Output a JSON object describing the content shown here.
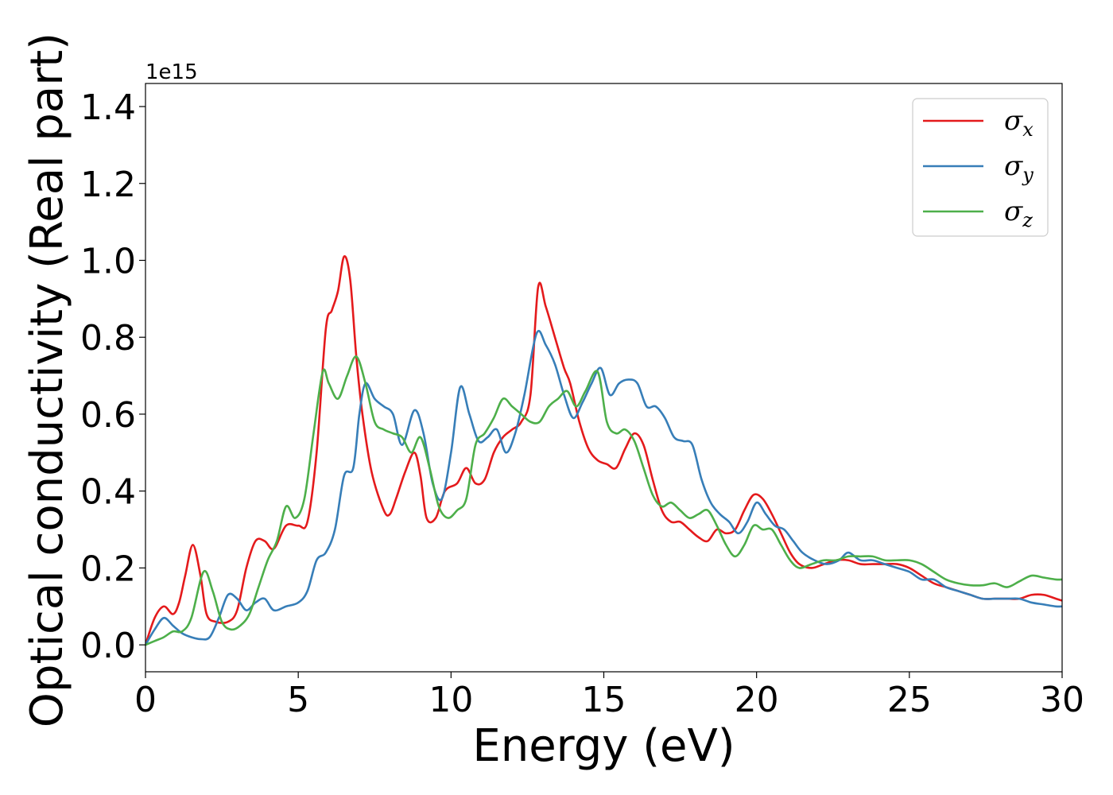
{
  "chart_data": {
    "type": "line",
    "xlabel": "Energy (eV)",
    "ylabel": "Optical conductivity (Real part)",
    "y_offset_label": "1e15",
    "xlim": [
      0,
      30
    ],
    "ylim": [
      -0.07,
      1.46
    ],
    "x_ticks": [
      0,
      5,
      10,
      15,
      20,
      25,
      30
    ],
    "x_tick_labels": [
      "0",
      "5",
      "10",
      "15",
      "20",
      "25",
      "30"
    ],
    "y_ticks": [
      0.0,
      0.2,
      0.4,
      0.6,
      0.8,
      1.0,
      1.2,
      1.4
    ],
    "y_tick_labels": [
      "0.0",
      "0.2",
      "0.4",
      "0.6",
      "0.8",
      "1.0",
      "1.2",
      "1.4"
    ],
    "grid": false,
    "legend_position": "top-right",
    "series": [
      {
        "name": "σx",
        "legend_base": "σ",
        "legend_sub": "x",
        "color": "#e41a1c",
        "x": [
          0,
          0.3,
          0.6,
          0.9,
          1.1,
          1.3,
          1.55,
          1.8,
          2.0,
          2.3,
          2.7,
          3.0,
          3.3,
          3.6,
          3.9,
          4.2,
          4.6,
          5.0,
          5.3,
          5.6,
          5.9,
          6.1,
          6.3,
          6.5,
          6.7,
          6.9,
          7.1,
          7.4,
          7.8,
          8.0,
          8.2,
          8.5,
          8.8,
          9.0,
          9.2,
          9.5,
          9.8,
          10.2,
          10.5,
          10.8,
          11.1,
          11.4,
          11.7,
          12.0,
          12.3,
          12.6,
          12.85,
          13.1,
          13.4,
          13.7,
          13.9,
          14.2,
          14.5,
          14.8,
          15.1,
          15.4,
          15.7,
          16.0,
          16.3,
          16.6,
          16.9,
          17.2,
          17.5,
          17.8,
          18.1,
          18.4,
          18.7,
          19.0,
          19.3,
          19.6,
          19.9,
          20.2,
          20.5,
          20.8,
          21.1,
          21.4,
          21.8,
          22.2,
          22.6,
          23.0,
          23.4,
          23.8,
          24.2,
          24.6,
          25.0,
          25.4,
          25.8,
          26.2,
          26.6,
          27.0,
          27.4,
          27.8,
          28.2,
          28.6,
          29.0,
          29.4,
          29.8,
          30.0
        ],
        "y": [
          0.0,
          0.07,
          0.1,
          0.08,
          0.11,
          0.18,
          0.26,
          0.18,
          0.08,
          0.06,
          0.06,
          0.09,
          0.2,
          0.27,
          0.27,
          0.25,
          0.31,
          0.31,
          0.32,
          0.5,
          0.82,
          0.87,
          0.92,
          1.01,
          0.95,
          0.75,
          0.6,
          0.45,
          0.35,
          0.34,
          0.38,
          0.45,
          0.5,
          0.44,
          0.33,
          0.33,
          0.4,
          0.42,
          0.46,
          0.42,
          0.43,
          0.5,
          0.54,
          0.56,
          0.58,
          0.65,
          0.93,
          0.88,
          0.8,
          0.72,
          0.68,
          0.58,
          0.51,
          0.48,
          0.47,
          0.46,
          0.51,
          0.55,
          0.52,
          0.43,
          0.35,
          0.32,
          0.32,
          0.3,
          0.28,
          0.27,
          0.3,
          0.29,
          0.3,
          0.35,
          0.39,
          0.38,
          0.34,
          0.29,
          0.24,
          0.21,
          0.2,
          0.21,
          0.22,
          0.22,
          0.21,
          0.21,
          0.21,
          0.21,
          0.2,
          0.18,
          0.16,
          0.15,
          0.14,
          0.13,
          0.12,
          0.12,
          0.12,
          0.12,
          0.13,
          0.13,
          0.12,
          0.115
        ]
      },
      {
        "name": "σy",
        "legend_base": "σ",
        "legend_sub": "y",
        "color": "#377eb8",
        "x": [
          0,
          0.3,
          0.6,
          0.9,
          1.2,
          1.5,
          1.8,
          2.1,
          2.4,
          2.7,
          3.0,
          3.3,
          3.6,
          3.9,
          4.2,
          4.6,
          5.0,
          5.3,
          5.6,
          5.9,
          6.2,
          6.5,
          6.8,
          7.0,
          7.2,
          7.5,
          7.8,
          8.1,
          8.4,
          8.8,
          9.1,
          9.4,
          9.7,
          10.0,
          10.3,
          10.6,
          10.9,
          11.2,
          11.5,
          11.8,
          12.1,
          12.4,
          12.8,
          13.1,
          13.4,
          13.7,
          14.0,
          14.3,
          14.6,
          14.9,
          15.2,
          15.5,
          15.8,
          16.1,
          16.4,
          16.7,
          17.0,
          17.3,
          17.6,
          17.9,
          18.2,
          18.5,
          18.8,
          19.1,
          19.4,
          19.7,
          20.0,
          20.3,
          20.6,
          20.9,
          21.2,
          21.5,
          21.9,
          22.3,
          22.7,
          23.0,
          23.4,
          23.8,
          24.2,
          24.6,
          25.0,
          25.4,
          25.8,
          26.2,
          26.6,
          27.0,
          27.4,
          27.8,
          28.2,
          28.6,
          29.0,
          29.4,
          29.8,
          30.0
        ],
        "y": [
          0.0,
          0.04,
          0.07,
          0.05,
          0.03,
          0.02,
          0.015,
          0.02,
          0.07,
          0.13,
          0.12,
          0.09,
          0.11,
          0.12,
          0.09,
          0.1,
          0.11,
          0.14,
          0.22,
          0.24,
          0.3,
          0.44,
          0.46,
          0.6,
          0.68,
          0.64,
          0.62,
          0.6,
          0.52,
          0.61,
          0.55,
          0.42,
          0.38,
          0.5,
          0.67,
          0.6,
          0.53,
          0.54,
          0.56,
          0.5,
          0.55,
          0.65,
          0.81,
          0.78,
          0.73,
          0.65,
          0.59,
          0.63,
          0.68,
          0.72,
          0.65,
          0.68,
          0.69,
          0.68,
          0.62,
          0.62,
          0.59,
          0.54,
          0.53,
          0.52,
          0.43,
          0.37,
          0.34,
          0.32,
          0.29,
          0.32,
          0.37,
          0.34,
          0.31,
          0.3,
          0.27,
          0.24,
          0.22,
          0.21,
          0.22,
          0.24,
          0.22,
          0.22,
          0.21,
          0.2,
          0.19,
          0.17,
          0.17,
          0.15,
          0.14,
          0.13,
          0.12,
          0.12,
          0.12,
          0.12,
          0.11,
          0.105,
          0.1,
          0.1
        ]
      },
      {
        "name": "σz",
        "legend_base": "σ",
        "legend_sub": "z",
        "color": "#4daf4a",
        "x": [
          0,
          0.3,
          0.6,
          0.9,
          1.2,
          1.5,
          1.9,
          2.2,
          2.5,
          2.8,
          3.1,
          3.4,
          3.7,
          4.0,
          4.3,
          4.6,
          4.9,
          5.2,
          5.5,
          5.8,
          6.0,
          6.3,
          6.6,
          6.9,
          7.2,
          7.5,
          7.8,
          8.1,
          8.4,
          8.7,
          9.0,
          9.3,
          9.6,
          9.9,
          10.2,
          10.5,
          10.8,
          11.1,
          11.4,
          11.7,
          12.0,
          12.3,
          12.6,
          12.9,
          13.2,
          13.5,
          13.8,
          14.1,
          14.4,
          14.8,
          15.1,
          15.4,
          15.7,
          16.0,
          16.3,
          16.6,
          16.9,
          17.2,
          17.5,
          17.8,
          18.1,
          18.4,
          18.7,
          19.0,
          19.3,
          19.6,
          19.9,
          20.2,
          20.5,
          20.8,
          21.1,
          21.4,
          21.8,
          22.2,
          22.6,
          23.0,
          23.4,
          23.8,
          24.2,
          24.6,
          25.0,
          25.4,
          25.8,
          26.2,
          26.6,
          27.0,
          27.4,
          27.8,
          28.2,
          28.6,
          29.0,
          29.4,
          29.8,
          30.0
        ],
        "y": [
          0.0,
          0.01,
          0.02,
          0.035,
          0.035,
          0.07,
          0.19,
          0.14,
          0.06,
          0.04,
          0.05,
          0.08,
          0.15,
          0.22,
          0.27,
          0.36,
          0.33,
          0.38,
          0.55,
          0.71,
          0.68,
          0.64,
          0.7,
          0.75,
          0.68,
          0.58,
          0.56,
          0.55,
          0.54,
          0.5,
          0.54,
          0.46,
          0.36,
          0.33,
          0.35,
          0.38,
          0.52,
          0.55,
          0.59,
          0.64,
          0.62,
          0.6,
          0.58,
          0.58,
          0.62,
          0.64,
          0.66,
          0.62,
          0.66,
          0.71,
          0.58,
          0.55,
          0.56,
          0.53,
          0.46,
          0.39,
          0.36,
          0.37,
          0.35,
          0.33,
          0.34,
          0.35,
          0.31,
          0.26,
          0.23,
          0.26,
          0.31,
          0.3,
          0.3,
          0.26,
          0.22,
          0.2,
          0.21,
          0.22,
          0.22,
          0.23,
          0.23,
          0.23,
          0.22,
          0.22,
          0.22,
          0.21,
          0.19,
          0.17,
          0.16,
          0.155,
          0.155,
          0.16,
          0.15,
          0.165,
          0.18,
          0.175,
          0.17,
          0.17
        ]
      }
    ]
  }
}
